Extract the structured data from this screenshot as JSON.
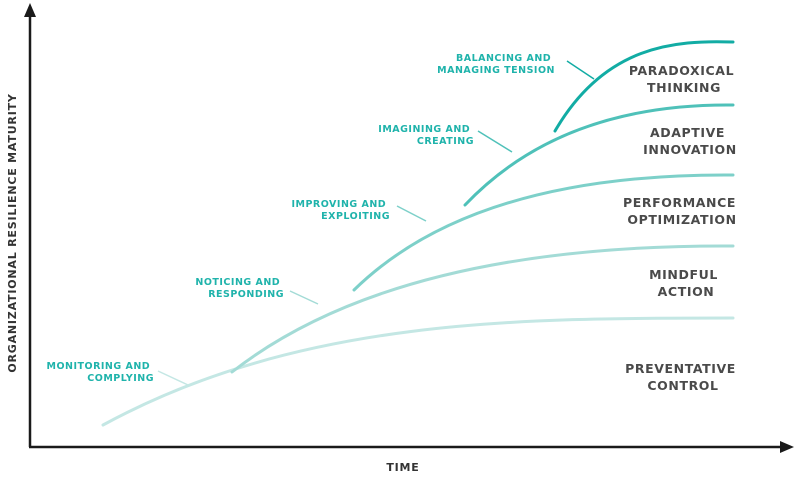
{
  "axes": {
    "x_label": "TIME",
    "y_label": "ORGANIZATIONAL RESILIENCE MATURITY"
  },
  "colors": {
    "axis": "#1a1a1a",
    "curve_1": "#c4e7e4",
    "curve_2": "#a3dbd6",
    "curve_3": "#7dd0c9",
    "curve_4": "#4fc1b9",
    "curve_5": "#12aca4",
    "callout_text": "#1fb3ab",
    "stage_text": "#4a4a4a"
  },
  "stages": [
    {
      "line1": "PREVENTATIVE",
      "line2": "CONTROL"
    },
    {
      "line1": "MINDFUL",
      "line2": "ACTION"
    },
    {
      "line1": "PERFORMANCE",
      "line2": "OPTIMIZATION"
    },
    {
      "line1": "ADAPTIVE",
      "line2": "INNOVATION"
    },
    {
      "line1": "PARADOXICAL",
      "line2": "THINKING"
    }
  ],
  "callouts": [
    {
      "line1": "MONITORING AND",
      "line2": "COMPLYING"
    },
    {
      "line1": "NOTICING AND",
      "line2": "RESPONDING"
    },
    {
      "line1": "IMPROVING AND",
      "line2": "EXPLOITING"
    },
    {
      "line1": "IMAGINING AND",
      "line2": "CREATING"
    },
    {
      "line1": "BALANCING AND",
      "line2": "MANAGING TENSION"
    }
  ]
}
